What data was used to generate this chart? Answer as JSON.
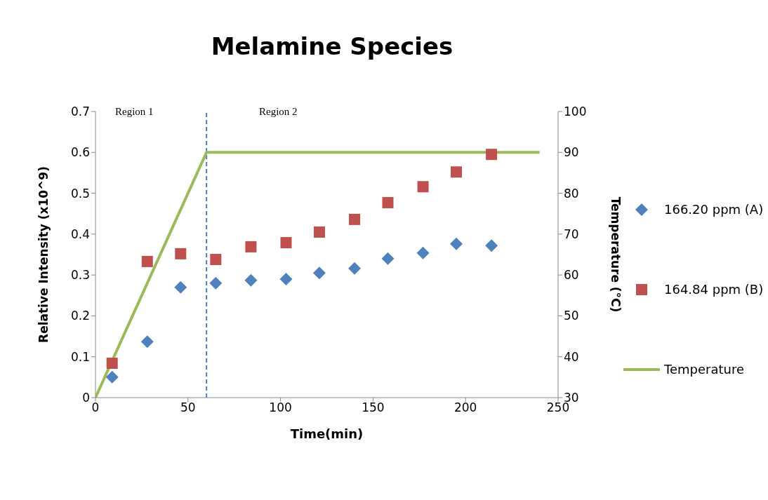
{
  "chart_data": {
    "type": "scatter",
    "title": "Melamine Species",
    "xlabel": "Time(min)",
    "ylabel": "Relative Intensity (x10^9)",
    "y2label": "Temperature (°C)",
    "xlim": [
      0,
      250
    ],
    "xticks": [
      0,
      50,
      100,
      150,
      200,
      250
    ],
    "ylim": [
      0,
      0.7
    ],
    "yticks": [
      0,
      0.1,
      0.2,
      0.3,
      0.4,
      0.5,
      0.6,
      0.7
    ],
    "y2lim": [
      30,
      100
    ],
    "y2ticks": [
      30,
      40,
      50,
      60,
      70,
      80,
      90,
      100
    ],
    "x": [
      9,
      28,
      46,
      65,
      84,
      103,
      121,
      140,
      158,
      177,
      195,
      214
    ],
    "series": [
      {
        "name": "166.20 ppm (A)",
        "color": "#4f81bd",
        "marker": "diamond",
        "values": [
          0.05,
          0.137,
          0.27,
          0.28,
          0.287,
          0.29,
          0.305,
          0.316,
          0.34,
          0.354,
          0.376,
          0.372
        ]
      },
      {
        "name": "164.84 ppm (B)",
        "color": "#c0504d",
        "marker": "square",
        "values": [
          0.084,
          0.333,
          0.352,
          0.338,
          0.369,
          0.379,
          0.405,
          0.436,
          0.477,
          0.516,
          0.552,
          0.595
        ]
      },
      {
        "name": "Temperature",
        "type": "line",
        "axis": "y2",
        "color": "#9bbb59",
        "marker": "none",
        "x": [
          0,
          60,
          240
        ],
        "values": [
          30,
          90,
          90
        ]
      }
    ],
    "ref_lines": [
      {
        "axis": "x",
        "value": 60,
        "color": "#4a7ebb",
        "line_style": "dashed"
      }
    ],
    "annotations": [
      "Region 1",
      "Region 2"
    ],
    "grid": false,
    "legend": "right"
  }
}
